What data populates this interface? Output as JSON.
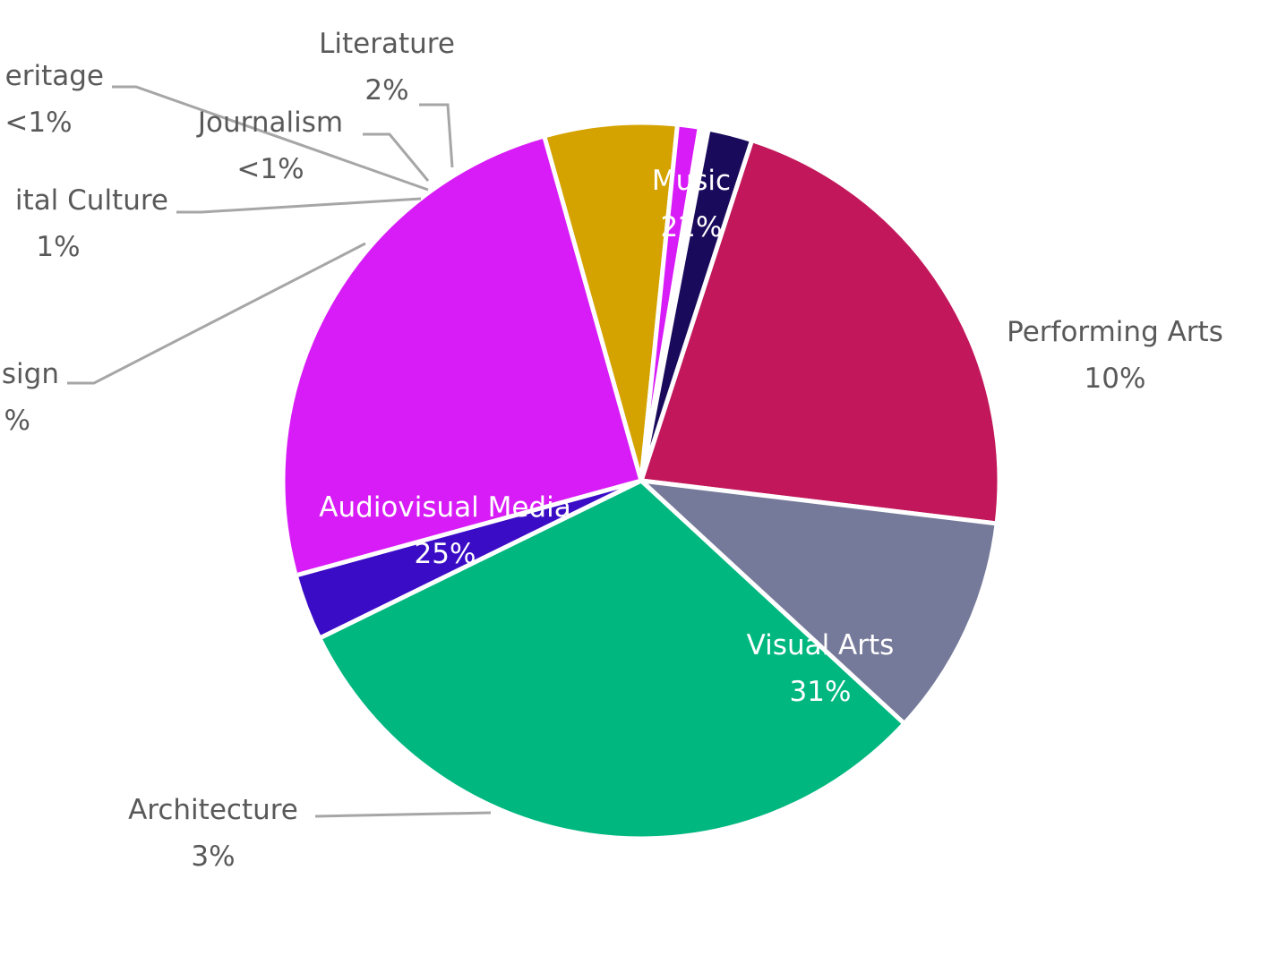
{
  "chart_data": {
    "type": "pie",
    "title": "",
    "slices": [
      {
        "label": "Music",
        "value_text": "22%",
        "value": 22,
        "color": "#c2185b"
      },
      {
        "label": "Performing Arts",
        "value_text": "10%",
        "value": 10,
        "color": "#767a9a"
      },
      {
        "label": "Visual Arts",
        "value_text": "31%",
        "value": 31,
        "color": "#00b77f"
      },
      {
        "label": "Architecture",
        "value_text": "3%",
        "value": 3,
        "color": "#3b0cc6"
      },
      {
        "label": "Audiovisual Media",
        "value_text": "25%",
        "value": 25,
        "color": "#d81cf7"
      },
      {
        "label": "sign",
        "value_text": "%",
        "value": 6,
        "color": "#d4a300"
      },
      {
        "label": "ital Culture",
        "value_text": "1%",
        "value": 1,
        "color": "#d81cf7"
      },
      {
        "label": "eritage",
        "value_text": "<1%",
        "value": 0.2,
        "color": "#c2185b"
      },
      {
        "label": "Journalism",
        "value_text": "<1%",
        "value": 0.2,
        "color": "#1a9ad6"
      },
      {
        "label": "Literature",
        "value_text": "2%",
        "value": 2,
        "color": "#1a0a5c"
      }
    ]
  }
}
